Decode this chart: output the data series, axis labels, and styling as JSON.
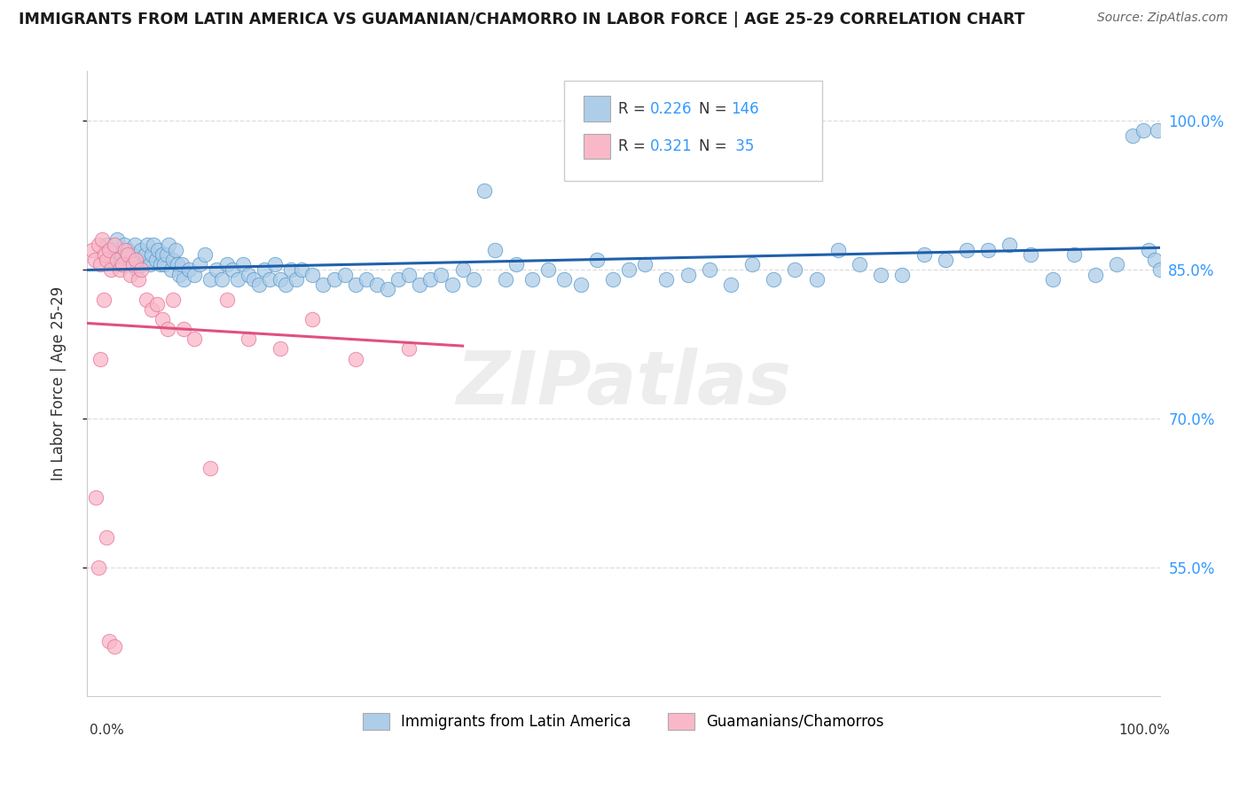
{
  "title": "IMMIGRANTS FROM LATIN AMERICA VS GUAMANIAN/CHAMORRO IN LABOR FORCE | AGE 25-29 CORRELATION CHART",
  "source": "Source: ZipAtlas.com",
  "ylabel": "In Labor Force | Age 25-29",
  "x_range": [
    0.0,
    1.0
  ],
  "y_range": [
    0.42,
    1.05
  ],
  "blue_R": 0.226,
  "blue_N": 146,
  "pink_R": 0.321,
  "pink_N": 35,
  "blue_color": "#aecde8",
  "pink_color": "#f9b8c8",
  "blue_edge_color": "#5599cc",
  "pink_edge_color": "#e87098",
  "blue_line_color": "#2060aa",
  "pink_line_color": "#e05080",
  "blue_label_color": "#3399ff",
  "n_label_color": "#3399ff",
  "legend_label_blue": "Immigrants from Latin America",
  "legend_label_pink": "Guamanians/Chamorros",
  "watermark": "ZIPatlas",
  "ytick_vals": [
    0.55,
    0.7,
    0.85,
    1.0
  ],
  "ytick_labels": [
    "55.0%",
    "70.0%",
    "85.0%",
    "100.0%"
  ],
  "grid_color": "#dddddd",
  "background_color": "#ffffff",
  "blue_x": [
    0.018,
    0.022,
    0.025,
    0.028,
    0.03,
    0.032,
    0.034,
    0.036,
    0.038,
    0.04,
    0.042,
    0.044,
    0.046,
    0.048,
    0.05,
    0.052,
    0.054,
    0.056,
    0.058,
    0.06,
    0.062,
    0.064,
    0.066,
    0.068,
    0.07,
    0.072,
    0.074,
    0.076,
    0.078,
    0.08,
    0.082,
    0.084,
    0.086,
    0.088,
    0.09,
    0.095,
    0.1,
    0.105,
    0.11,
    0.115,
    0.12,
    0.125,
    0.13,
    0.135,
    0.14,
    0.145,
    0.15,
    0.155,
    0.16,
    0.165,
    0.17,
    0.175,
    0.18,
    0.185,
    0.19,
    0.195,
    0.2,
    0.21,
    0.22,
    0.23,
    0.24,
    0.25,
    0.26,
    0.27,
    0.28,
    0.29,
    0.3,
    0.31,
    0.32,
    0.33,
    0.34,
    0.35,
    0.36,
    0.37,
    0.38,
    0.39,
    0.4,
    0.415,
    0.43,
    0.445,
    0.46,
    0.475,
    0.49,
    0.505,
    0.52,
    0.54,
    0.56,
    0.58,
    0.6,
    0.62,
    0.64,
    0.66,
    0.68,
    0.7,
    0.72,
    0.74,
    0.76,
    0.78,
    0.8,
    0.82,
    0.84,
    0.86,
    0.88,
    0.9,
    0.92,
    0.94,
    0.96,
    0.975,
    0.985,
    0.99,
    0.995,
    0.998,
    1.0
  ],
  "blue_y": [
    0.875,
    0.86,
    0.87,
    0.88,
    0.855,
    0.865,
    0.875,
    0.86,
    0.87,
    0.855,
    0.865,
    0.875,
    0.85,
    0.86,
    0.87,
    0.855,
    0.865,
    0.875,
    0.855,
    0.865,
    0.875,
    0.86,
    0.87,
    0.855,
    0.865,
    0.855,
    0.865,
    0.875,
    0.85,
    0.86,
    0.87,
    0.855,
    0.845,
    0.855,
    0.84,
    0.85,
    0.845,
    0.855,
    0.865,
    0.84,
    0.85,
    0.84,
    0.855,
    0.85,
    0.84,
    0.855,
    0.845,
    0.84,
    0.835,
    0.85,
    0.84,
    0.855,
    0.84,
    0.835,
    0.85,
    0.84,
    0.85,
    0.845,
    0.835,
    0.84,
    0.845,
    0.835,
    0.84,
    0.835,
    0.83,
    0.84,
    0.845,
    0.835,
    0.84,
    0.845,
    0.835,
    0.85,
    0.84,
    0.93,
    0.87,
    0.84,
    0.855,
    0.84,
    0.85,
    0.84,
    0.835,
    0.86,
    0.84,
    0.85,
    0.855,
    0.84,
    0.845,
    0.85,
    0.835,
    0.855,
    0.84,
    0.85,
    0.84,
    0.87,
    0.855,
    0.845,
    0.845,
    0.865,
    0.86,
    0.87,
    0.87,
    0.875,
    0.865,
    0.84,
    0.865,
    0.845,
    0.855,
    0.985,
    0.99,
    0.87,
    0.86,
    0.99,
    0.85
  ],
  "pink_x": [
    0.005,
    0.007,
    0.01,
    0.012,
    0.014,
    0.016,
    0.018,
    0.02,
    0.022,
    0.025,
    0.028,
    0.03,
    0.033,
    0.035,
    0.038,
    0.04,
    0.043,
    0.045,
    0.048,
    0.05,
    0.055,
    0.06,
    0.065,
    0.07,
    0.075,
    0.08,
    0.09,
    0.1,
    0.115,
    0.13,
    0.15,
    0.18,
    0.21,
    0.25,
    0.3
  ],
  "pink_y": [
    0.87,
    0.86,
    0.875,
    0.855,
    0.88,
    0.865,
    0.86,
    0.87,
    0.85,
    0.875,
    0.86,
    0.85,
    0.855,
    0.87,
    0.865,
    0.845,
    0.855,
    0.86,
    0.84,
    0.85,
    0.82,
    0.81,
    0.815,
    0.8,
    0.79,
    0.82,
    0.79,
    0.78,
    0.65,
    0.82,
    0.78,
    0.77,
    0.8,
    0.76,
    0.77
  ],
  "pink_extra_low_x": [
    0.008,
    0.01,
    0.012,
    0.015,
    0.018,
    0.02,
    0.025
  ],
  "pink_extra_low_y": [
    0.62,
    0.55,
    0.76,
    0.82,
    0.58,
    0.475,
    0.47
  ]
}
